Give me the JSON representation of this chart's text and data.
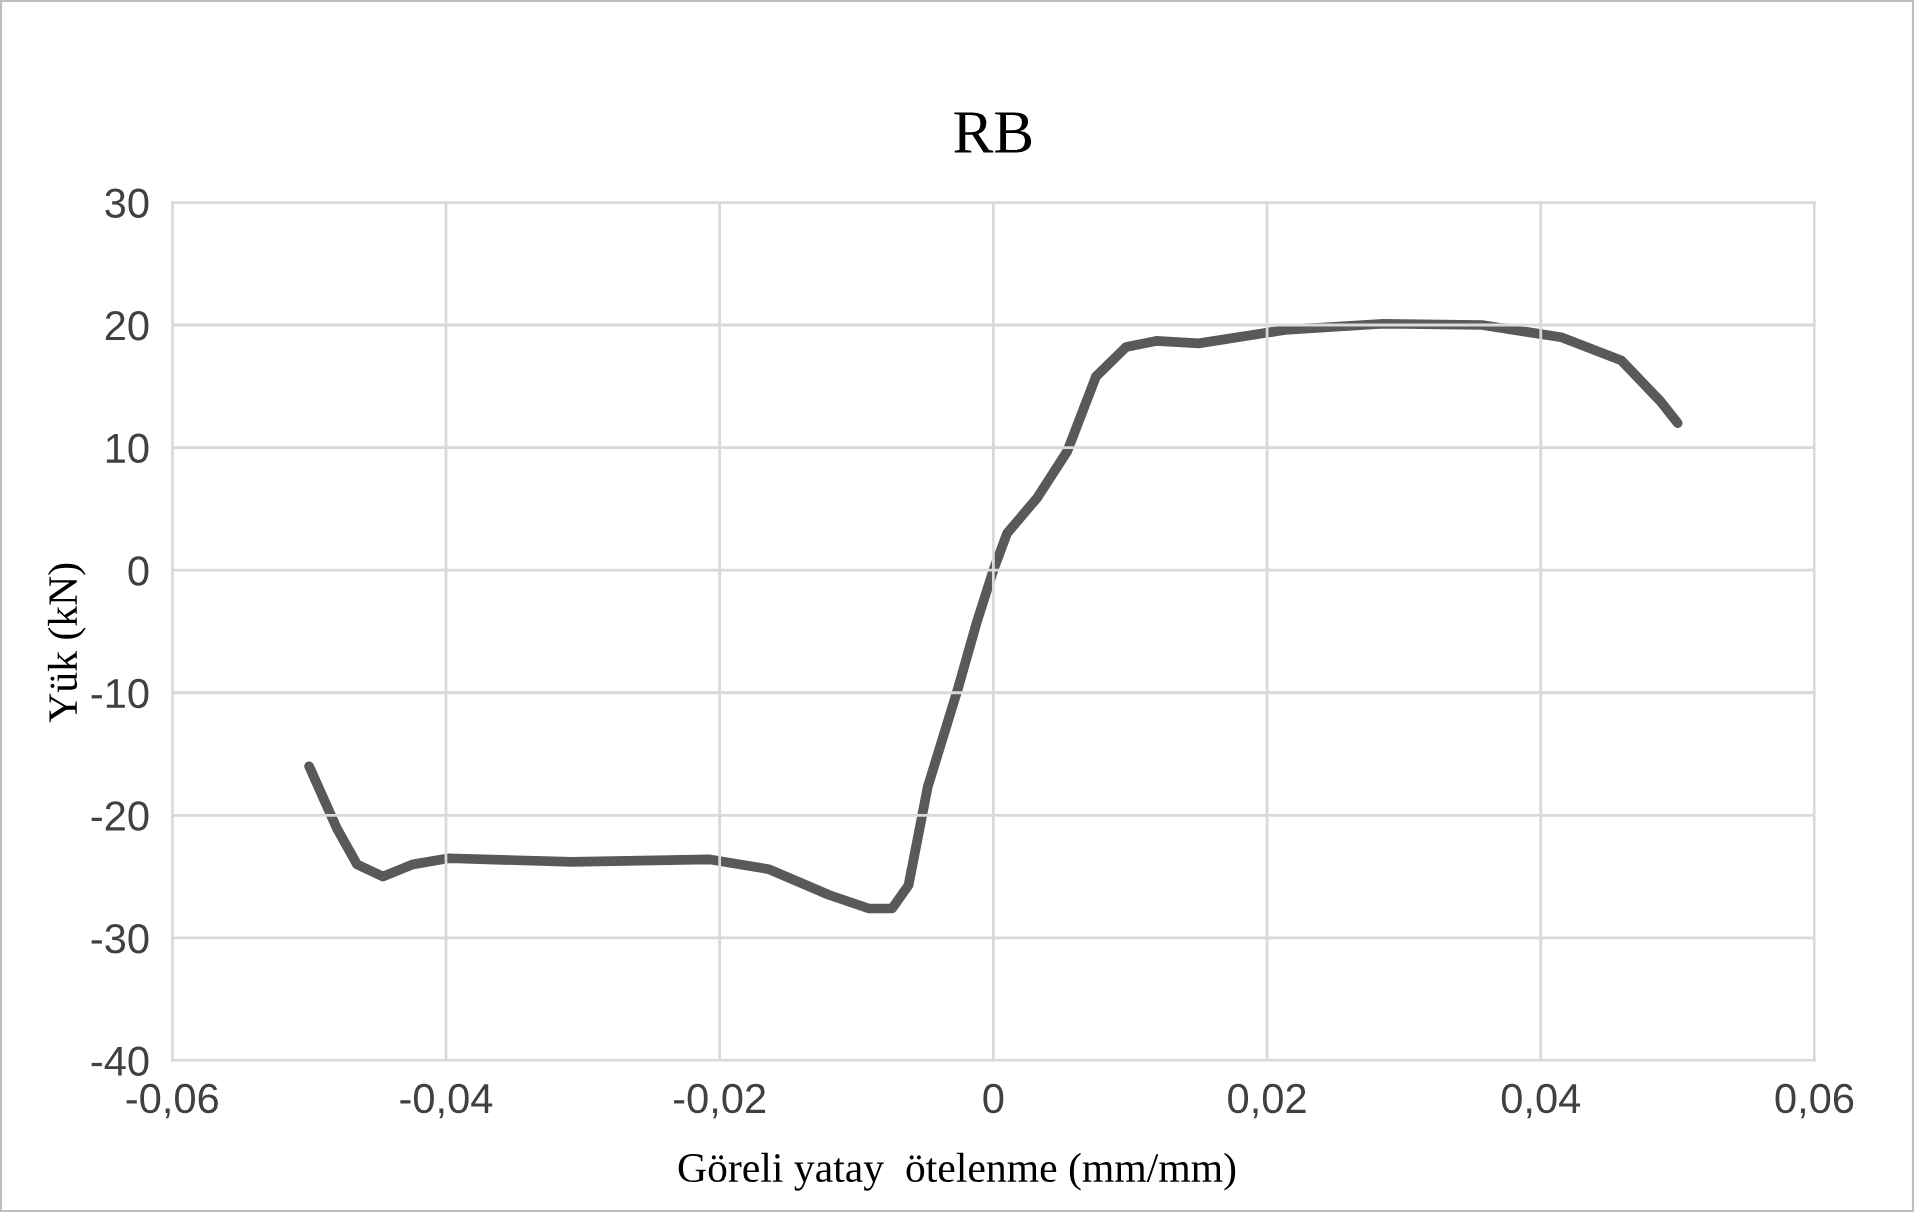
{
  "chart_data": {
    "type": "line",
    "title": "RB",
    "xlabel": "Göreli yatay  ötelenme (mm/mm)",
    "ylabel": "Yük (kN)",
    "x": [
      -0.05,
      -0.048,
      -0.0465,
      -0.0446,
      -0.0424,
      -0.0398,
      -0.0308,
      -0.0207,
      -0.0164,
      -0.012,
      -0.0091,
      -0.0074,
      -0.0062,
      -0.0048,
      -0.0026,
      -0.0012,
      0,
      0.001,
      0.0032,
      0.0054,
      0.0075,
      0.0097,
      0.0119,
      0.015,
      0.0213,
      0.0285,
      0.0357,
      0.0415,
      0.0459,
      0.0488,
      0.05
    ],
    "series": [
      {
        "color": "#595959",
        "values": [
          -16,
          -21,
          -24,
          -25,
          -24,
          -23.5,
          -23.8,
          -23.6,
          -24.4,
          -26.5,
          -27.6,
          -27.6,
          -25.7,
          -17.7,
          -9.7,
          -4.2,
          0,
          3,
          5.9,
          9.7,
          15.8,
          18.2,
          18.7,
          18.5,
          19.6,
          20.1,
          20,
          19,
          17.1,
          13.7,
          12
        ]
      }
    ],
    "xlim": [
      -0.06,
      0.06
    ],
    "ylim": [
      -40,
      30
    ],
    "xticks": [
      {
        "value": -0.06,
        "label": "-0,06"
      },
      {
        "value": -0.04,
        "label": "-0,04"
      },
      {
        "value": -0.02,
        "label": "-0,02"
      },
      0,
      {
        "value": 0.02,
        "label": "0,02"
      },
      {
        "value": 0.04,
        "label": "0,04"
      },
      {
        "value": 0.06,
        "label": "0,06"
      }
    ],
    "yticks": [
      -40,
      -30,
      -20,
      -10,
      0,
      10,
      20,
      30
    ],
    "grid": true,
    "marker": "none",
    "line_style": "solid",
    "legend": false
  }
}
